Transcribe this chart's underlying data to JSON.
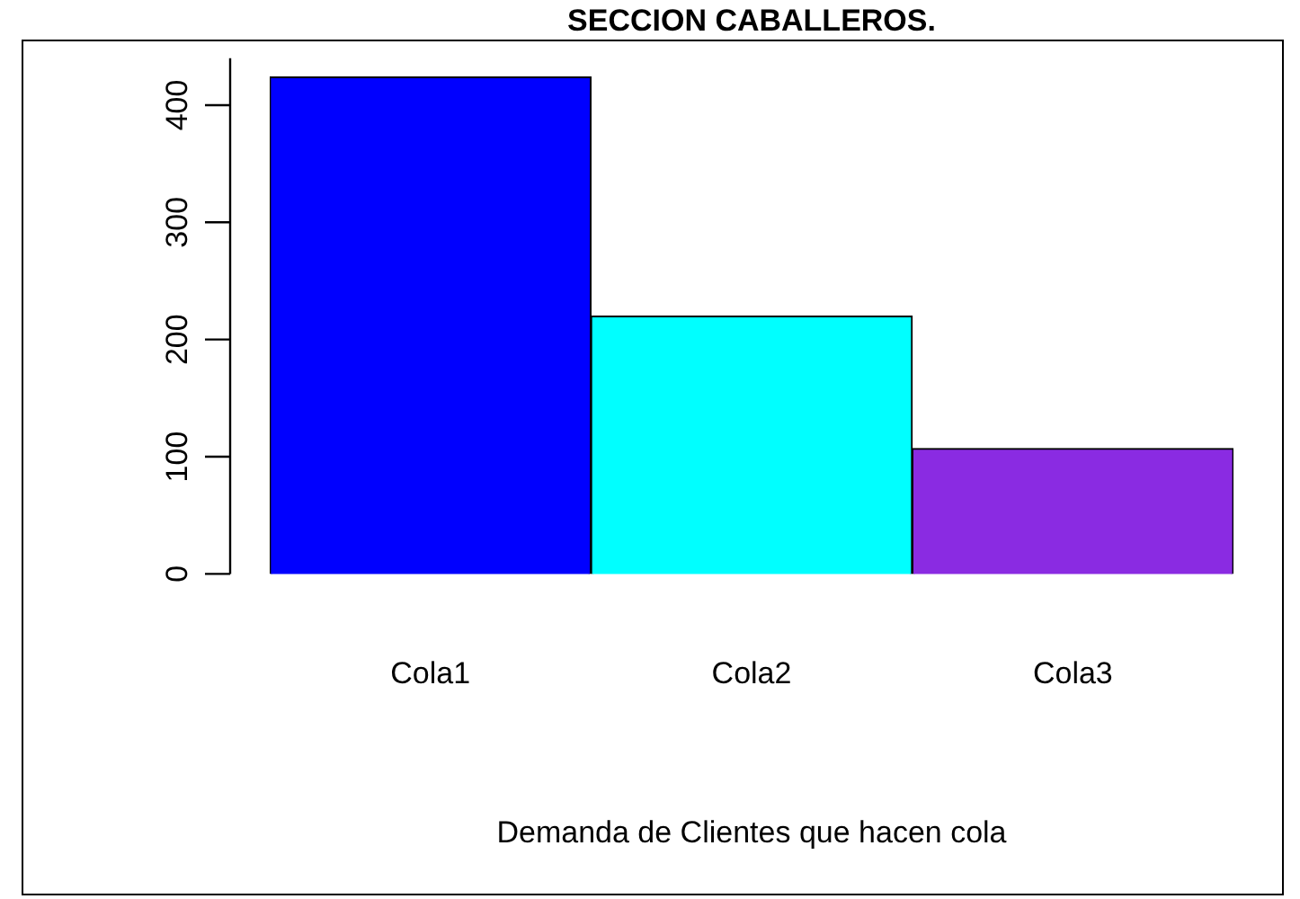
{
  "chart_data": {
    "type": "bar",
    "title": "SECCION CABALLEROS.",
    "xlabel": "Demanda de Clientes que hacen cola",
    "categories": [
      "Cola1",
      "Cola2",
      "Cola3"
    ],
    "values": [
      424,
      220,
      107
    ],
    "colors": [
      "#0000ff",
      "#00ffff",
      "#8a2be2"
    ],
    "ylim": [
      0,
      440
    ],
    "yticks": [
      0,
      100,
      200,
      300,
      400
    ],
    "grid": false,
    "legend": false
  }
}
